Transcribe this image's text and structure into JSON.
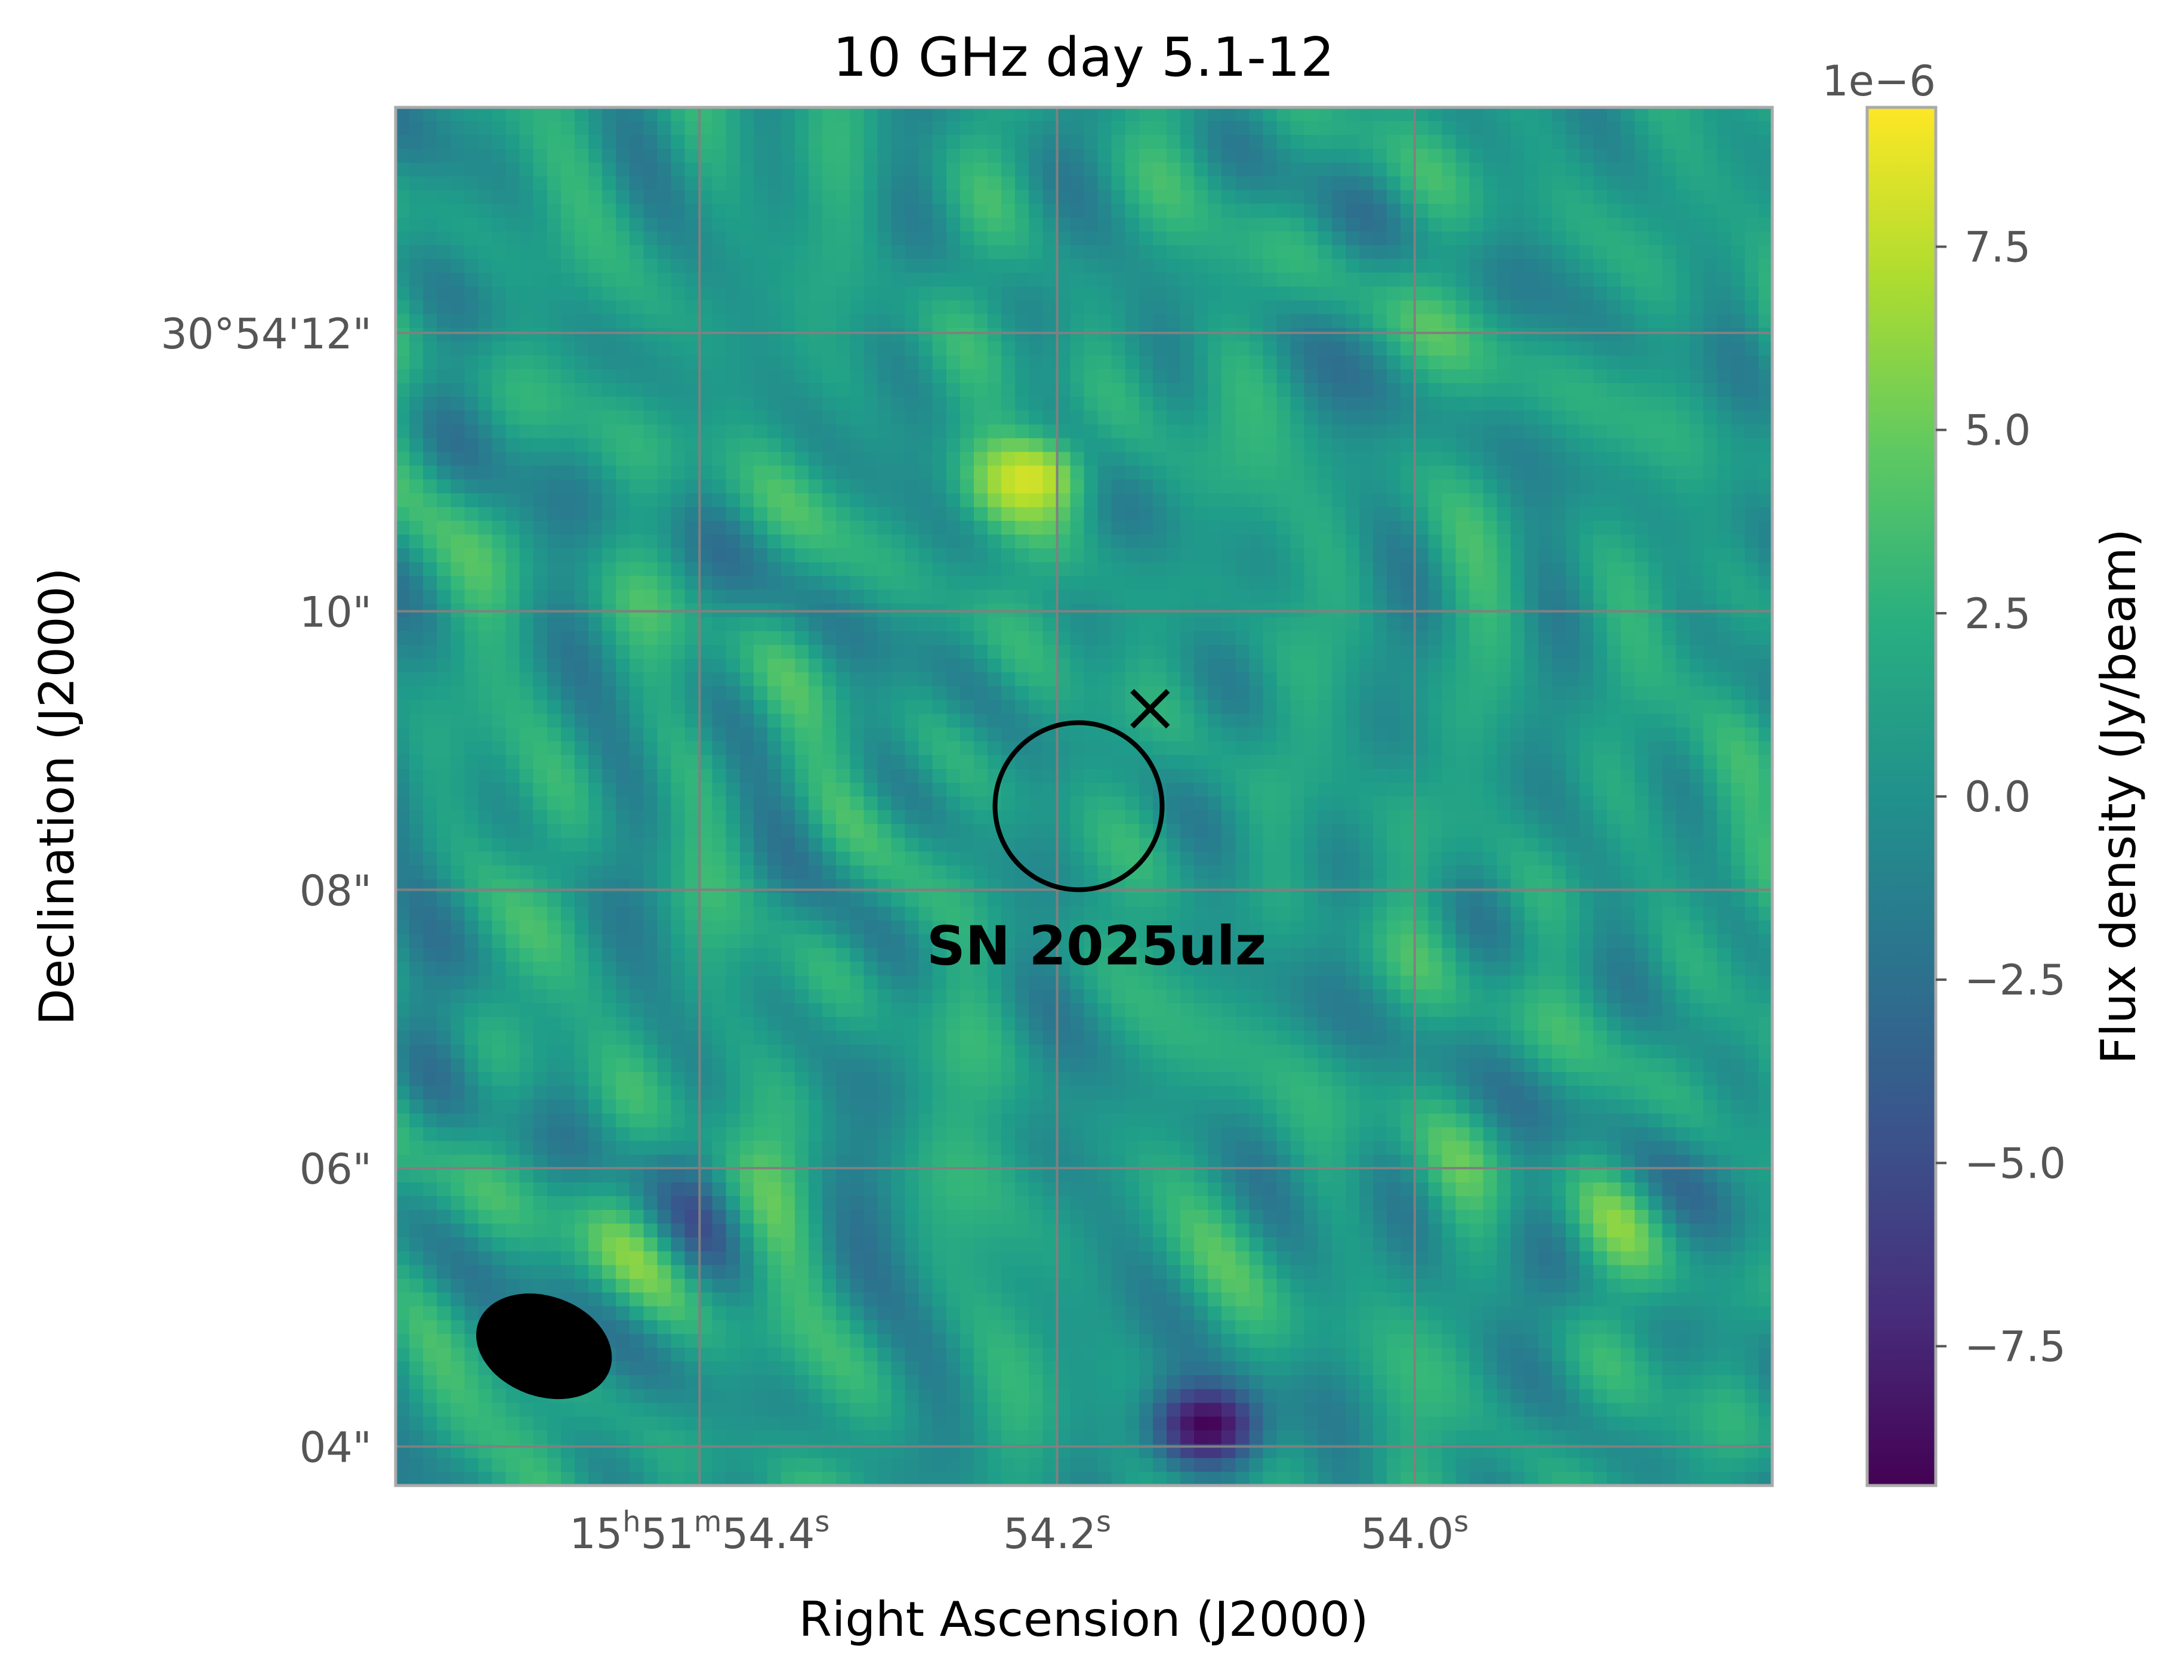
{
  "chart_data": {
    "type": "heatmap",
    "title": "10 GHz day 5.1-12",
    "xlabel": "Right Ascension (J2000)",
    "ylabel": "Declination (J2000)",
    "x_ticks": [
      {
        "label": "15h51m54.4s",
        "h": "15",
        "m": "51",
        "s": "54.4",
        "ra_sec": 54.4
      },
      {
        "label": "54.2s",
        "s": "54.2",
        "ra_sec": 54.2
      },
      {
        "label": "54.0s",
        "s": "54.0",
        "ra_sec": 54.0
      }
    ],
    "x_range_ra_sec": [
      54.57,
      53.8
    ],
    "y_ticks": [
      {
        "label": "30°54'12\"",
        "dec_arcsec": 12
      },
      {
        "label": "10\"",
        "dec_arcsec": 10
      },
      {
        "label": "08\"",
        "dec_arcsec": 8
      },
      {
        "label": "06\"",
        "dec_arcsec": 6
      },
      {
        "label": "04\"",
        "dec_arcsec": 4
      }
    ],
    "y_range_dec_arcsec": [
      3.72,
      13.62
    ],
    "grid": true,
    "colormap": "viridis",
    "colorbar": {
      "label": "Flux density (Jy/beam)",
      "scale_label": "1e−6",
      "range": [
        -9.4,
        9.4
      ],
      "ticks": [
        7.5,
        5.0,
        2.5,
        0.0,
        -2.5,
        -5.0,
        -7.5
      ],
      "tick_labels": [
        "7.5",
        "5.0",
        "2.5",
        "0.0",
        "−2.5",
        "−5.0",
        "−7.5"
      ]
    },
    "source_marker": {
      "label": "SN 2025ulz",
      "ra_sec": 54.188,
      "dec_arcsec": 8.6,
      "radius_arcsec": 0.6
    },
    "cross_marker": {
      "ra_sec": 54.148,
      "dec_arcsec": 9.3
    },
    "beam": {
      "ra_sec": 54.487,
      "dec_arcsec": 4.72,
      "major_arcsec": 0.85,
      "minor_arcsec": 0.6,
      "position_angle_deg": 70
    },
    "notable_features": [
      {
        "type": "peak",
        "ra_sec": 54.22,
        "dec_arcsec": 11.0,
        "value": 8.3
      },
      {
        "type": "trough",
        "ra_sec": 54.12,
        "dec_arcsec": 4.2,
        "value": -9.3
      }
    ]
  },
  "colors": {
    "grid": "#808080",
    "frame": "#aaaaaa",
    "tick_text": "#555555",
    "marker": "#000000"
  }
}
